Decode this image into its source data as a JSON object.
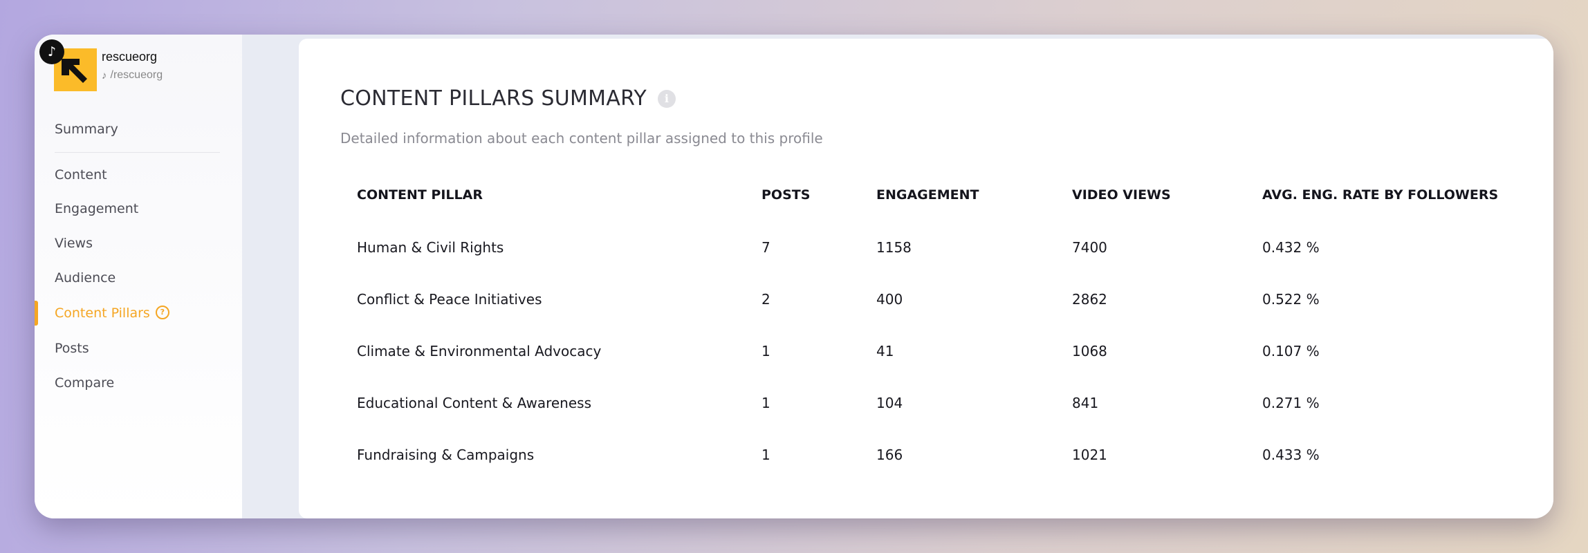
{
  "profile": {
    "name": "rescueorg",
    "handle": "/rescueorg",
    "platform_icon": "tiktok-icon",
    "logo_color": "#fbbb29"
  },
  "nav": {
    "items": [
      {
        "label": "Summary"
      },
      {
        "label": "Content"
      },
      {
        "label": "Engagement"
      },
      {
        "label": "Views"
      },
      {
        "label": "Audience"
      },
      {
        "label": "Content Pillars",
        "active": true,
        "help_icon": "question-circle-icon"
      },
      {
        "label": "Posts"
      },
      {
        "label": "Compare"
      }
    ],
    "active_color": "#f5a623"
  },
  "panel": {
    "title": "CONTENT PILLARS SUMMARY",
    "subtitle": "Detailed information about each content pillar assigned to this profile",
    "info_icon": "info-icon"
  },
  "table": {
    "headers": [
      "CONTENT PILLAR",
      "POSTS",
      "ENGAGEMENT",
      "VIDEO VIEWS",
      "AVG. ENG. RATE BY FOLLOWERS"
    ],
    "rows": [
      [
        "Human & Civil Rights",
        "7",
        "1158",
        "7400",
        "0.432 %"
      ],
      [
        "Conflict & Peace Initiatives",
        "2",
        "400",
        "2862",
        "0.522 %"
      ],
      [
        "Climate & Environmental Advocacy",
        "1",
        "41",
        "1068",
        "0.107 %"
      ],
      [
        "Educational Content & Awareness",
        "1",
        "104",
        "841",
        "0.271 %"
      ],
      [
        "Fundraising & Campaigns",
        "1",
        "166",
        "1021",
        "0.433 %"
      ]
    ]
  }
}
